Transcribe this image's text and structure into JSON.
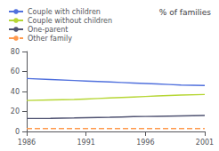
{
  "chart_data": {
    "type": "line",
    "title": "% of families",
    "x": [
      1986,
      1988,
      1990,
      1991,
      1992,
      1993,
      1994,
      1995,
      1996,
      1997,
      1998,
      1999,
      2001
    ],
    "series": [
      {
        "name": "Couple with children",
        "line_style": "solid",
        "values": [
          53,
          52,
          51,
          50.5,
          50,
          49.5,
          49,
          48.5,
          48,
          47.5,
          47,
          46.5,
          46
        ]
      },
      {
        "name": "Couple without children",
        "line_style": "solid",
        "values": [
          31,
          31.5,
          32,
          32.5,
          33,
          33.5,
          34,
          34.5,
          35,
          35.5,
          36,
          36.5,
          37
        ]
      },
      {
        "name": "One-parent",
        "line_style": "solid",
        "values": [
          13,
          13.2,
          13.5,
          13.8,
          14,
          14.2,
          14.5,
          14.8,
          15,
          15.2,
          15.4,
          15.6,
          16
        ]
      },
      {
        "name": "Other family",
        "line_style": "dashed",
        "values": [
          3,
          3,
          3,
          3,
          3,
          3,
          3,
          3,
          3,
          3,
          3,
          3,
          3
        ]
      }
    ],
    "xlim": [
      1986,
      2001
    ],
    "xticks": [
      1986,
      1991,
      1996,
      2001
    ],
    "ylim": [
      0,
      80
    ],
    "yticks": [
      0,
      20,
      40,
      60,
      80
    ],
    "grid": false,
    "legend": "upper left"
  }
}
